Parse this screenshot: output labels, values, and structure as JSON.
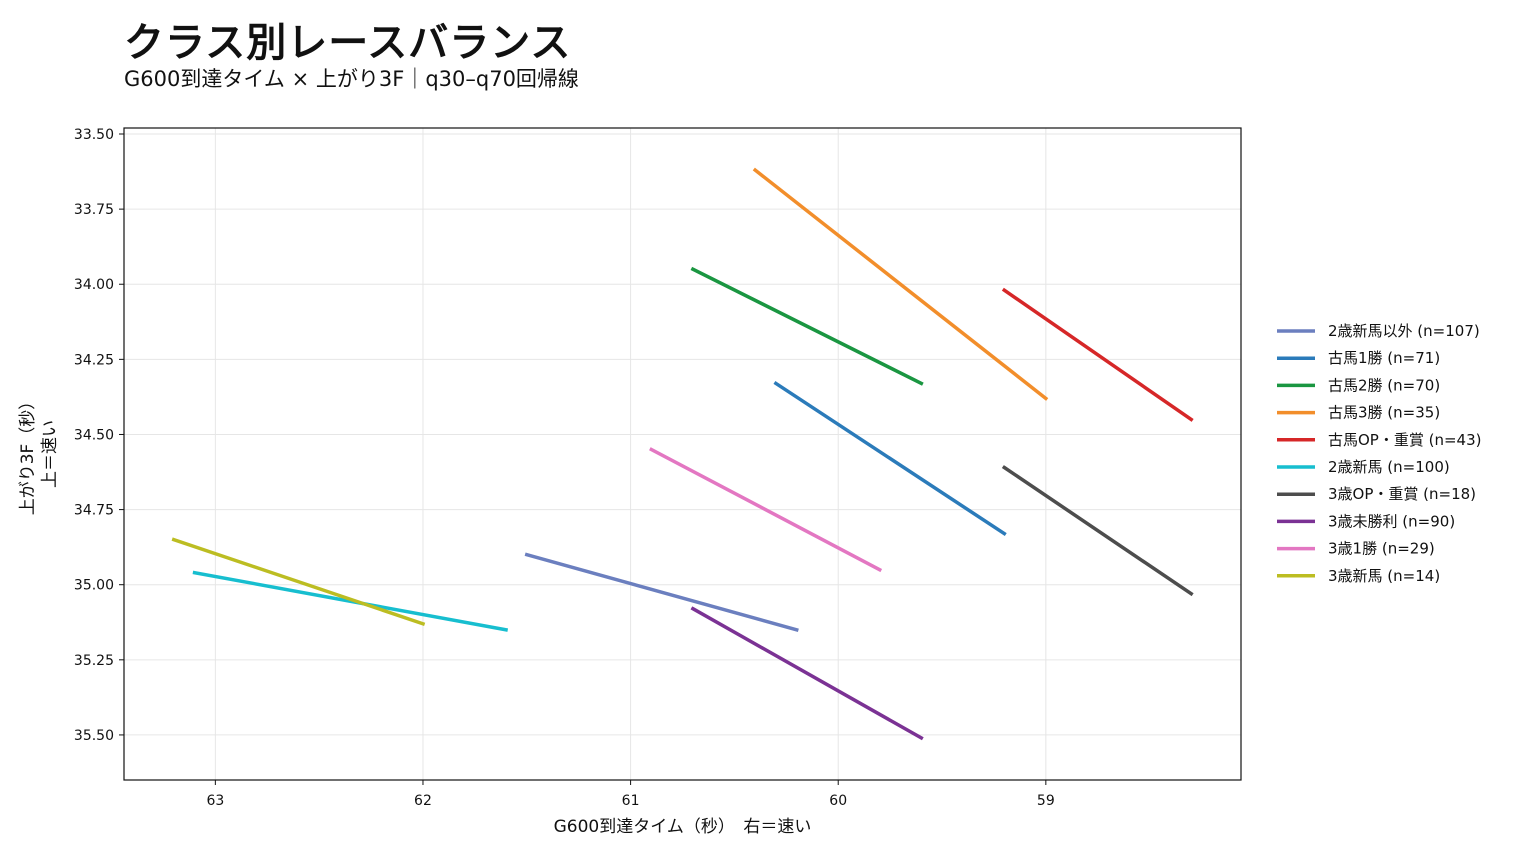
{
  "title": "クラス別レースバランス",
  "subtitle": "G600到達タイム × 上がり3F｜q30–q70回帰線",
  "chart_data": {
    "type": "line",
    "xlabel": "G600到達タイム（秒）　右＝速い",
    "ylabel_line1": "上がり3F（秒）",
    "ylabel_line2": "上＝速い",
    "x_inverted": true,
    "y_inverted": true,
    "xlim": [
      63.44,
      58.06
    ],
    "ylim": [
      35.65,
      33.48
    ],
    "x_ticks": [
      63,
      62,
      61,
      60,
      59
    ],
    "y_ticks": [
      33.5,
      33.75,
      34.0,
      34.25,
      34.5,
      34.75,
      35.0,
      35.25,
      35.5
    ],
    "y_tick_labels": [
      "33.50",
      "33.75",
      "34.00",
      "34.25",
      "34.50",
      "34.75",
      "35.00",
      "35.25",
      "35.50"
    ],
    "grid": true,
    "legend_position": "right",
    "series": [
      {
        "name": "2歳新馬以外 (n=107)",
        "color": "#6b7fbf",
        "x": [
          61.5,
          60.2
        ],
        "y": [
          34.9,
          35.15
        ]
      },
      {
        "name": "古馬1勝 (n=71)",
        "color": "#2b7bba",
        "x": [
          60.3,
          59.2
        ],
        "y": [
          34.33,
          34.83
        ]
      },
      {
        "name": "古馬2勝 (n=70)",
        "color": "#1a9641",
        "x": [
          60.7,
          59.6
        ],
        "y": [
          33.95,
          34.33
        ]
      },
      {
        "name": "古馬3勝 (n=35)",
        "color": "#f28e2b",
        "x": [
          60.4,
          59.0
        ],
        "y": [
          33.62,
          34.38
        ]
      },
      {
        "name": "古馬OP・重賞 (n=43)",
        "color": "#d62728",
        "x": [
          59.2,
          58.3
        ],
        "y": [
          34.02,
          34.45
        ]
      },
      {
        "name": "2歳新馬 (n=100)",
        "color": "#17becf",
        "x": [
          63.1,
          61.6
        ],
        "y": [
          34.96,
          35.15
        ]
      },
      {
        "name": "3歳OP・重賞 (n=18)",
        "color": "#4d4d4d",
        "x": [
          59.2,
          58.3
        ],
        "y": [
          34.61,
          35.03
        ]
      },
      {
        "name": "3歳未勝利 (n=90)",
        "color": "#7b3294",
        "x": [
          60.7,
          59.6
        ],
        "y": [
          35.08,
          35.51
        ]
      },
      {
        "name": "3歳1勝 (n=29)",
        "color": "#e377c2",
        "x": [
          60.9,
          59.8
        ],
        "y": [
          34.55,
          34.95
        ]
      },
      {
        "name": "3歳新馬 (n=14)",
        "color": "#bcbd22",
        "x": [
          63.2,
          62.0
        ],
        "y": [
          34.85,
          35.13
        ]
      }
    ]
  }
}
